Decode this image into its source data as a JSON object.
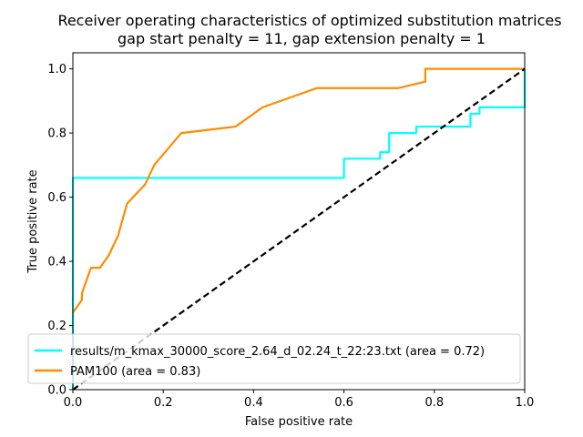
{
  "chart_data": {
    "type": "line",
    "title": "Receiver operating characteristics of optimized substitution matrices",
    "subtitle": "gap start penalty = 11, gap extension penalty = 1",
    "xlabel": "False positive rate",
    "ylabel": "True positive rate",
    "xlim": [
      0.0,
      1.0
    ],
    "ylim": [
      0.0,
      1.05
    ],
    "x_ticks": [
      "0.0",
      "0.2",
      "0.4",
      "0.6",
      "0.8",
      "1.0"
    ],
    "y_ticks": [
      "0.0",
      "0.2",
      "0.4",
      "0.6",
      "0.8",
      "1.0"
    ],
    "grid": false,
    "legend_position": "lower-left",
    "series": [
      {
        "name": "results/m_kmax_30000_score_2.64_d_02.24_t_22:23.txt (area = 0.72)",
        "color": "#00ffff",
        "points": [
          [
            0,
            0
          ],
          [
            0,
            0.66
          ],
          [
            0.6,
            0.66
          ],
          [
            0.6,
            0.72
          ],
          [
            0.68,
            0.72
          ],
          [
            0.68,
            0.74
          ],
          [
            0.7,
            0.74
          ],
          [
            0.7,
            0.8
          ],
          [
            0.76,
            0.8
          ],
          [
            0.76,
            0.82
          ],
          [
            0.88,
            0.82
          ],
          [
            0.88,
            0.86
          ],
          [
            0.9,
            0.86
          ],
          [
            0.9,
            0.88
          ],
          [
            1.0,
            0.88
          ],
          [
            1.0,
            1.0
          ]
        ]
      },
      {
        "name": "PAM100 (area = 0.83)",
        "color": "#ff8c00",
        "points": [
          [
            0,
            0.24
          ],
          [
            0.02,
            0.28
          ],
          [
            0.02,
            0.3
          ],
          [
            0.04,
            0.38
          ],
          [
            0.06,
            0.38
          ],
          [
            0.08,
            0.42
          ],
          [
            0.1,
            0.48
          ],
          [
            0.12,
            0.58
          ],
          [
            0.16,
            0.64
          ],
          [
            0.18,
            0.7
          ],
          [
            0.24,
            0.8
          ],
          [
            0.36,
            0.82
          ],
          [
            0.42,
            0.88
          ],
          [
            0.54,
            0.94
          ],
          [
            0.72,
            0.94
          ],
          [
            0.78,
            0.96
          ],
          [
            0.78,
            1.0
          ],
          [
            1.0,
            1.0
          ]
        ]
      },
      {
        "name": "",
        "color": "#000000",
        "style": "dashed",
        "points": [
          [
            0,
            0
          ],
          [
            1,
            1
          ]
        ]
      }
    ]
  }
}
